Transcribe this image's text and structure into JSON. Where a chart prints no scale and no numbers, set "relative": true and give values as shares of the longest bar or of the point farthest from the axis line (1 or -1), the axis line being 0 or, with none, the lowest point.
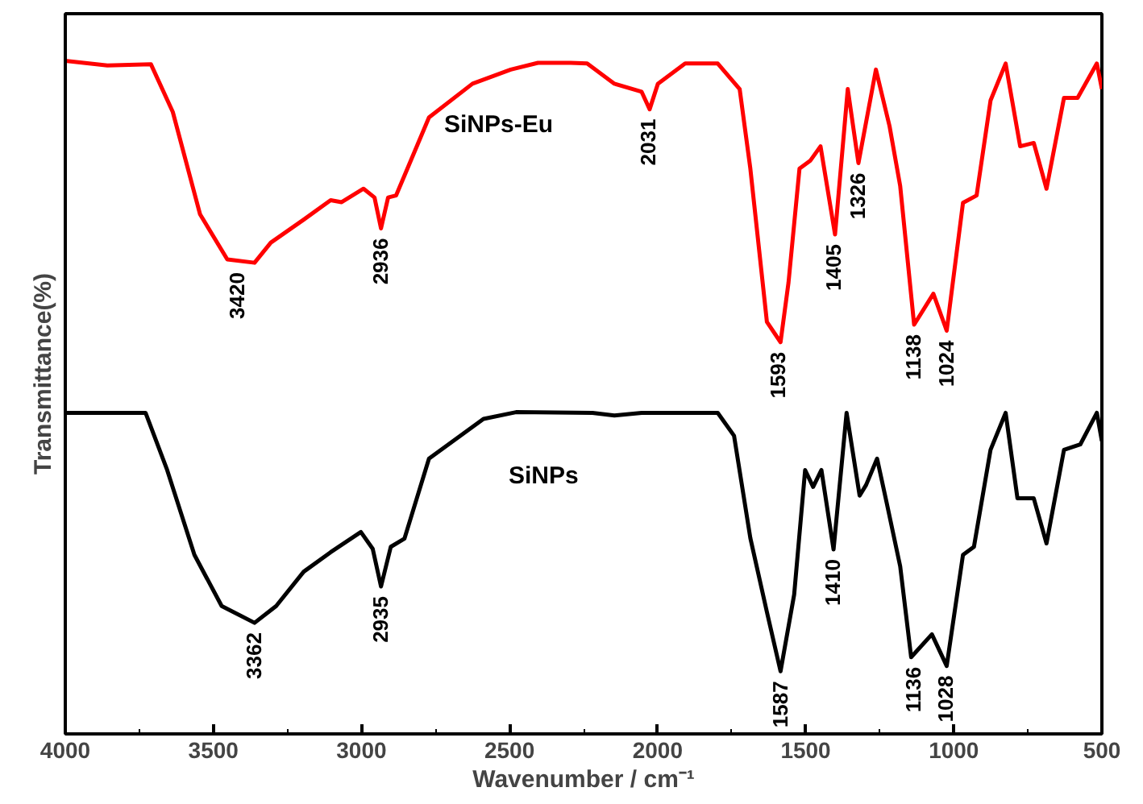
{
  "chart_data": {
    "type": "line",
    "relative": true,
    "xlabel": "Wavenumber / cm⁻¹",
    "ylabel": "Transmittance(%)",
    "xlim": [
      4000,
      500
    ],
    "xticks": [
      4000,
      3500,
      3000,
      2500,
      2000,
      1500,
      1000,
      500
    ],
    "grid": false,
    "marker": "none",
    "line_style": "solid",
    "series": [
      {
        "name": "SiNPs-Eu",
        "color": "#ff0000",
        "x": [
          4000,
          3858,
          3711,
          3637,
          3545,
          3453,
          3361,
          3306,
          3195,
          3104,
          3067,
          2993,
          2956,
          2934,
          2910,
          2883,
          2772,
          2625,
          2496,
          2404,
          2294,
          2238,
          2146,
          2054,
          2027,
          1999,
          1907,
          1797,
          1723,
          1687,
          1631,
          1585,
          1558,
          1521,
          1484,
          1450,
          1401,
          1358,
          1322,
          1263,
          1217,
          1181,
          1134,
          1069,
          1024,
          969,
          923,
          876,
          825,
          776,
          730,
          687,
          628,
          582,
          517,
          500
        ],
        "values": [
          1.0,
          0.993,
          0.995,
          0.924,
          0.772,
          0.705,
          0.7,
          0.73,
          0.764,
          0.793,
          0.79,
          0.81,
          0.797,
          0.751,
          0.797,
          0.8,
          0.916,
          0.966,
          0.987,
          0.997,
          0.997,
          0.996,
          0.966,
          0.954,
          0.928,
          0.966,
          0.996,
          0.996,
          0.958,
          0.84,
          0.612,
          0.582,
          0.671,
          0.84,
          0.852,
          0.873,
          0.742,
          0.958,
          0.848,
          0.987,
          0.903,
          0.814,
          0.608,
          0.654,
          0.599,
          0.789,
          0.8,
          0.941,
          0.996,
          0.873,
          0.878,
          0.81,
          0.945,
          0.945,
          0.996,
          0.958
        ]
      },
      {
        "name": "SiNPs",
        "color": "#000000",
        "x": [
          4000,
          3729,
          3656,
          3564,
          3472,
          3361,
          3288,
          3195,
          3104,
          3002,
          2962,
          2934,
          2901,
          2855,
          2772,
          2588,
          2478,
          2220,
          2146,
          2054,
          1797,
          1742,
          1687,
          1631,
          1585,
          1539,
          1502,
          1475,
          1447,
          1406,
          1362,
          1318,
          1296,
          1259,
          1226,
          1181,
          1144,
          1074,
          1024,
          969,
          932,
          876,
          825,
          785,
          730,
          687,
          628,
          573,
          517,
          500
        ],
        "values": [
          0.477,
          0.477,
          0.392,
          0.266,
          0.19,
          0.165,
          0.19,
          0.241,
          0.27,
          0.3,
          0.275,
          0.219,
          0.278,
          0.29,
          0.409,
          0.468,
          0.478,
          0.477,
          0.473,
          0.477,
          0.477,
          0.443,
          0.291,
          0.181,
          0.093,
          0.207,
          0.392,
          0.367,
          0.392,
          0.274,
          0.477,
          0.354,
          0.37,
          0.409,
          0.342,
          0.249,
          0.114,
          0.148,
          0.101,
          0.266,
          0.278,
          0.422,
          0.477,
          0.35,
          0.35,
          0.283,
          0.422,
          0.43,
          0.477,
          0.435
        ]
      }
    ],
    "annotations": [
      {
        "text": "3420",
        "x": 3420,
        "y": 0.7
      },
      {
        "text": "2936",
        "x": 2936,
        "y": 0.751
      },
      {
        "text": "2031",
        "x": 2031,
        "y": 0.928
      },
      {
        "text": "1593",
        "x": 1593,
        "y": 0.582
      },
      {
        "text": "1405",
        "x": 1405,
        "y": 0.742
      },
      {
        "text": "1326",
        "x": 1326,
        "y": 0.848
      },
      {
        "text": "1138",
        "x": 1138,
        "y": 0.608
      },
      {
        "text": "1024",
        "x": 1024,
        "y": 0.599
      },
      {
        "text": "3362",
        "x": 3362,
        "y": 0.165
      },
      {
        "text": "2935",
        "x": 2935,
        "y": 0.219
      },
      {
        "text": "1587",
        "x": 1587,
        "y": 0.093
      },
      {
        "text": "1410",
        "x": 1410,
        "y": 0.274
      },
      {
        "text": "1136",
        "x": 1136,
        "y": 0.114
      },
      {
        "text": "1028",
        "x": 1028,
        "y": 0.101
      }
    ]
  }
}
